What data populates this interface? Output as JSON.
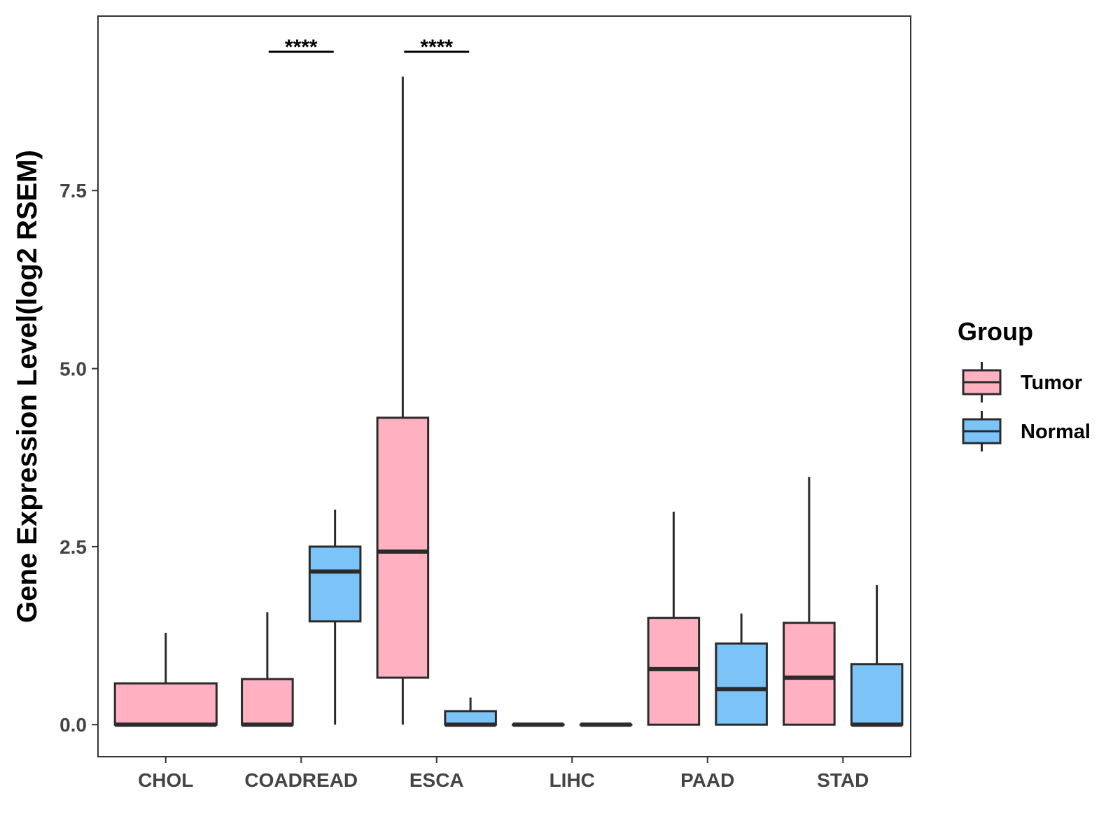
{
  "chart_data": {
    "type": "boxplot",
    "title": "",
    "xlabel": "",
    "ylabel": "Gene Expression Level(log2 RSEM)",
    "ylim": [
      -0.45,
      9.95
    ],
    "yticks": [
      0.0,
      2.5,
      5.0,
      7.5
    ],
    "ytick_labels": [
      "0.0",
      "2.5",
      "5.0",
      "7.5"
    ],
    "categories": [
      "CHOL",
      "COADREAD",
      "ESCA",
      "LIHC",
      "PAAD",
      "STAD"
    ],
    "legend": {
      "title": "Group",
      "position": "right",
      "entries": [
        {
          "name": "Tumor",
          "color": "#FFB1C1"
        },
        {
          "name": "Normal",
          "color": "#7CC3F8"
        }
      ]
    },
    "series": [
      {
        "name": "Tumor",
        "color": "#FFB1C1",
        "boxes": [
          {
            "category": "CHOL",
            "min": 0.0,
            "q1": 0.0,
            "median": 0.0,
            "q3": 0.58,
            "max": 1.29
          },
          {
            "category": "COADREAD",
            "min": 0.0,
            "q1": 0.0,
            "median": 0.0,
            "q3": 0.64,
            "max": 1.58
          },
          {
            "category": "ESCA",
            "min": 0.0,
            "q1": 0.66,
            "median": 2.43,
            "q3": 4.31,
            "max": 9.1
          },
          {
            "category": "LIHC",
            "min": 0.0,
            "q1": 0.0,
            "median": 0.0,
            "q3": 0.0,
            "max": 0.0
          },
          {
            "category": "PAAD",
            "min": 0.0,
            "q1": 0.0,
            "median": 0.78,
            "q3": 1.5,
            "max": 2.99
          },
          {
            "category": "STAD",
            "min": 0.0,
            "q1": 0.0,
            "median": 0.66,
            "q3": 1.43,
            "max": 3.48
          }
        ]
      },
      {
        "name": "Normal",
        "color": "#7CC3F8",
        "boxes": [
          {
            "category": "CHOL",
            "min": null,
            "q1": null,
            "median": null,
            "q3": null,
            "max": null
          },
          {
            "category": "COADREAD",
            "min": 0.0,
            "q1": 1.45,
            "median": 2.15,
            "q3": 2.5,
            "max": 3.02
          },
          {
            "category": "ESCA",
            "min": 0.0,
            "q1": 0.0,
            "median": 0.0,
            "q3": 0.19,
            "max": 0.38
          },
          {
            "category": "LIHC",
            "min": 0.0,
            "q1": 0.0,
            "median": 0.0,
            "q3": 0.0,
            "max": 0.0
          },
          {
            "category": "PAAD",
            "min": 0.0,
            "q1": 0.0,
            "median": 0.5,
            "q3": 1.14,
            "max": 1.56
          },
          {
            "category": "STAD",
            "min": 0.0,
            "q1": 0.0,
            "median": 0.0,
            "q3": 0.85,
            "max": 1.96
          }
        ]
      }
    ],
    "annotations": [
      {
        "category": "COADREAD",
        "label": "****"
      },
      {
        "category": "ESCA",
        "label": "****"
      }
    ]
  }
}
